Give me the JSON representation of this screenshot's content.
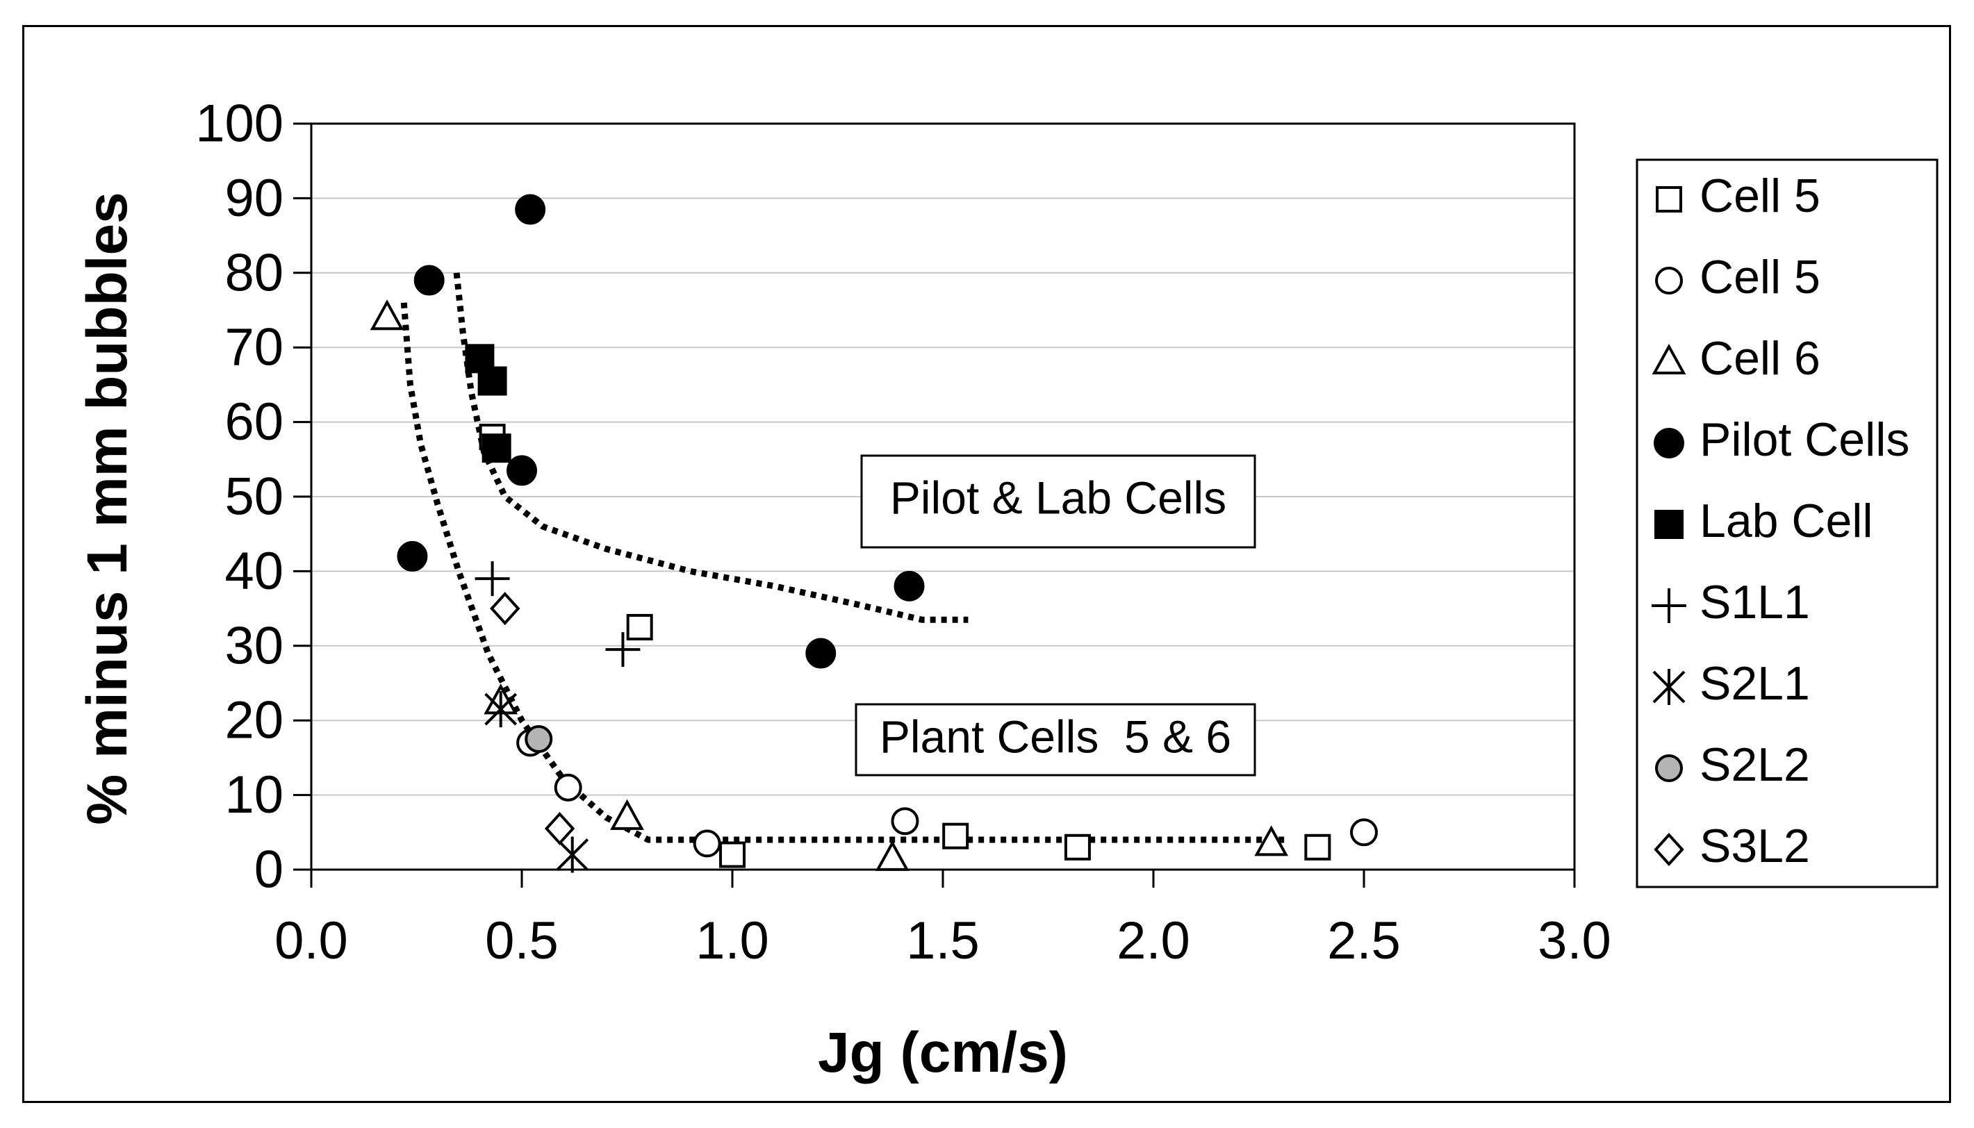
{
  "chart_data": {
    "type": "scatter",
    "title": "",
    "xlabel": "Jg (cm/s)",
    "ylabel": "% minus 1 mm bubbles",
    "xlim": [
      0.0,
      3.0
    ],
    "ylim": [
      0,
      100
    ],
    "xticks": [
      0.0,
      0.5,
      1.0,
      1.5,
      2.0,
      2.5,
      3.0
    ],
    "xtick_labels": [
      "0.0",
      "0.5",
      "1.0",
      "1.5",
      "2.0",
      "2.5",
      "3.0"
    ],
    "yticks": [
      0,
      10,
      20,
      30,
      40,
      50,
      60,
      70,
      80,
      90,
      100
    ],
    "ytick_labels": [
      "0",
      "10",
      "20",
      "30",
      "40",
      "50",
      "60",
      "70",
      "80",
      "90",
      "100"
    ],
    "grid": "horizontal",
    "legend_position": "right",
    "series": [
      {
        "name": "Cell 5",
        "marker": "square-open",
        "points": [
          [
            0.43,
            58
          ],
          [
            0.78,
            32.5
          ],
          [
            1.0,
            2
          ],
          [
            1.53,
            4.5
          ],
          [
            1.82,
            3
          ],
          [
            2.39,
            3
          ]
        ]
      },
      {
        "name": "Cell 5",
        "marker": "circle-open",
        "points": [
          [
            0.52,
            17
          ],
          [
            0.61,
            11
          ],
          [
            0.94,
            3.5
          ],
          [
            1.41,
            6.5
          ],
          [
            2.5,
            5
          ]
        ]
      },
      {
        "name": "Cell 6",
        "marker": "triangle-open",
        "points": [
          [
            0.18,
            74
          ],
          [
            0.45,
            22.5
          ],
          [
            0.75,
            7
          ],
          [
            1.38,
            1.5
          ],
          [
            2.28,
            3.5
          ]
        ]
      },
      {
        "name": "Pilot Cells",
        "marker": "circle-filled",
        "points": [
          [
            0.28,
            79
          ],
          [
            0.52,
            88.5
          ],
          [
            0.5,
            53.5
          ],
          [
            0.24,
            42
          ],
          [
            1.42,
            38
          ],
          [
            1.21,
            29
          ]
        ]
      },
      {
        "name": "Lab Cell",
        "marker": "square-filled",
        "points": [
          [
            0.4,
            68.5
          ],
          [
            0.43,
            65.5
          ],
          [
            0.44,
            56.5
          ]
        ]
      },
      {
        "name": "S1L1",
        "marker": "plus",
        "points": [
          [
            0.43,
            39
          ],
          [
            0.74,
            29.5
          ]
        ]
      },
      {
        "name": "S2L1",
        "marker": "asterisk",
        "points": [
          [
            0.45,
            21.5
          ],
          [
            0.62,
            2
          ]
        ]
      },
      {
        "name": "S2L2",
        "marker": "circle-gray",
        "points": [
          [
            0.54,
            17.5
          ]
        ]
      },
      {
        "name": "S3L2",
        "marker": "diamond-open",
        "points": [
          [
            0.46,
            35
          ],
          [
            0.59,
            5.5
          ]
        ]
      }
    ],
    "trendlines": [
      {
        "name": "Pilot & Lab trend",
        "style": "dotted",
        "points": [
          [
            0.345,
            80
          ],
          [
            0.36,
            72
          ],
          [
            0.38,
            64
          ],
          [
            0.41,
            56
          ],
          [
            0.46,
            50
          ],
          [
            0.55,
            46
          ],
          [
            0.7,
            43
          ],
          [
            0.9,
            40
          ],
          [
            1.1,
            38
          ],
          [
            1.3,
            35.5
          ],
          [
            1.45,
            33.5
          ],
          [
            1.56,
            33.5
          ]
        ]
      },
      {
        "name": "Plant trend",
        "style": "dotted",
        "points": [
          [
            0.22,
            76
          ],
          [
            0.235,
            65
          ],
          [
            0.26,
            57
          ],
          [
            0.3,
            49
          ],
          [
            0.35,
            40
          ],
          [
            0.42,
            29
          ],
          [
            0.5,
            20
          ],
          [
            0.6,
            12
          ],
          [
            0.7,
            7
          ],
          [
            0.8,
            4
          ],
          [
            1.0,
            4
          ],
          [
            1.5,
            4
          ],
          [
            2.0,
            4
          ],
          [
            2.32,
            4
          ]
        ]
      }
    ],
    "annotations": [
      {
        "text": "Pilot & Lab Cells",
        "x": 1.77,
        "y": 51.5
      },
      {
        "text": "Plant Cells  5 & 6",
        "x": 1.77,
        "y": 18
      }
    ]
  },
  "legend": {
    "items": [
      {
        "label": "Cell 5",
        "marker": "square-open"
      },
      {
        "label": "Cell 5",
        "marker": "circle-open"
      },
      {
        "label": "Cell 6",
        "marker": "triangle-open"
      },
      {
        "label": "Pilot Cells",
        "marker": "circle-filled"
      },
      {
        "label": "Lab Cell",
        "marker": "square-filled"
      },
      {
        "label": "S1L1",
        "marker": "plus"
      },
      {
        "label": "S2L1",
        "marker": "asterisk"
      },
      {
        "label": "S2L2",
        "marker": "circle-gray"
      },
      {
        "label": "S3L2",
        "marker": "diamond-open"
      }
    ]
  },
  "colors": {
    "ink": "#000000",
    "gridline": "#c8c8c8",
    "gray_fill": "#b4b4b4",
    "background": "#ffffff"
  }
}
